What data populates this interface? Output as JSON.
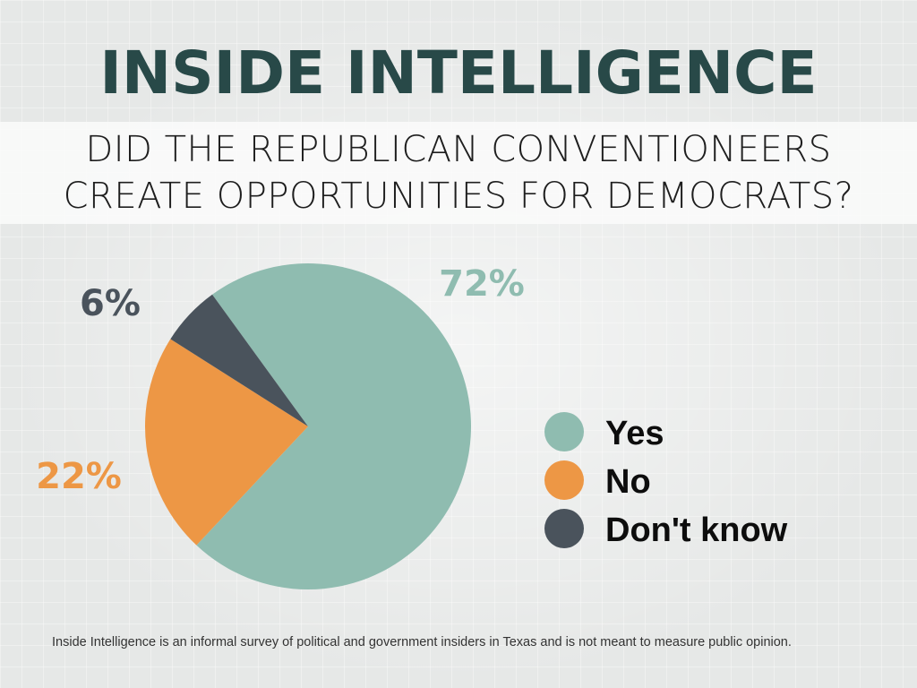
{
  "header": {
    "brand": "INSIDE INTELLIGENCE",
    "question_line1": "DID THE REPUBLICAN CONVENTIONEERS",
    "question_line2": "CREATE OPPORTUNITIES FOR DEMOCRATS?"
  },
  "chart_data": {
    "type": "pie",
    "title": "DID THE REPUBLICAN CONVENTIONEERS CREATE OPPORTUNITIES FOR DEMOCRATS?",
    "categories": [
      "Yes",
      "No",
      "Don't know"
    ],
    "values": [
      72,
      22,
      6
    ],
    "labels": [
      "72%",
      "22%",
      "6%"
    ],
    "colors": [
      "#8fbcb0",
      "#ed9745",
      "#4a535c"
    ],
    "legend": {
      "position": "right",
      "entries": [
        "Yes",
        "No",
        "Don't know"
      ]
    }
  },
  "footnote": "Inside Intelligence is an informal survey of political and government insiders in Texas and is not meant to measure public opinion."
}
